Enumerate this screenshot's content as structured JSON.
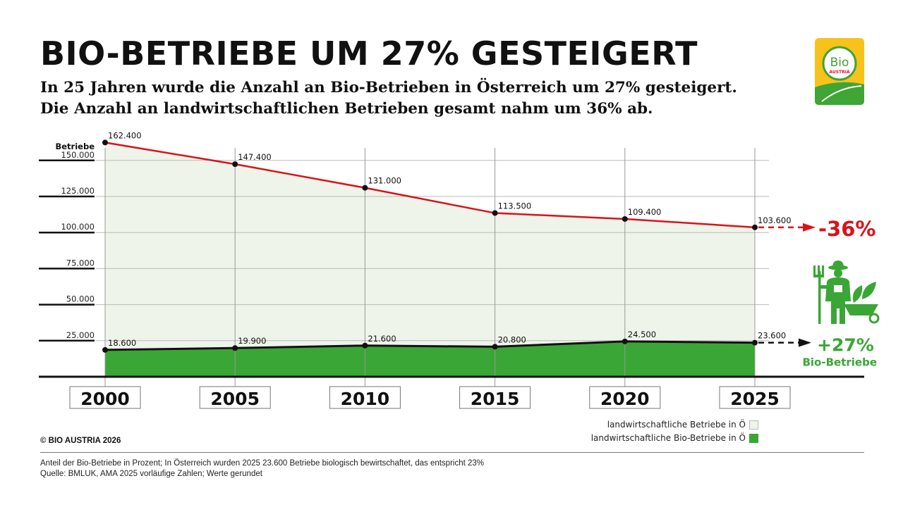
{
  "header": {
    "title": "BIO-BETRIEBE UM 27% GESTEIGERT",
    "subtitle_line1": "In 25 Jahren wurde die Anzahl an Bio-Betrieben in Österreich um 27% gesteigert.",
    "subtitle_line2": "Die Anzahl an landwirtschaftlichen Betrieben gesamt nahm um 36% ab."
  },
  "logo": {
    "text_main": "Bio",
    "text_sub": "AUSTRIA",
    "colors": {
      "background": "#F7C21A",
      "green": "#3FA535",
      "red": "#E2141F"
    }
  },
  "chart_data": {
    "type": "area",
    "title": "BIO-BETRIEBE UM 27% GESTEIGERT",
    "ylabel": "Betriebe",
    "xlabel": "",
    "x": [
      "2000",
      "2005",
      "2010",
      "2015",
      "2020",
      "2025"
    ],
    "ylim": [
      0,
      162400
    ],
    "yticks": [
      25000,
      50000,
      75000,
      100000,
      125000,
      150000
    ],
    "ytick_labels": [
      "25.000",
      "50.000",
      "75.000",
      "100.000",
      "125.000",
      "150.000"
    ],
    "grid": true,
    "series": [
      {
        "name": "landwirtschaftliche Betriebe in Ö",
        "values": [
          162400,
          147400,
          131000,
          113500,
          109400,
          103600
        ],
        "labels": [
          "162.400",
          "147.400",
          "131.000",
          "113.500",
          "109.400",
          "103.600"
        ],
        "line_color": "#D7141A",
        "fill_color": "#EFF4EA",
        "change_label": "-36%"
      },
      {
        "name": "landwirtschaftliche Bio-Betriebe in Ö",
        "values": [
          18600,
          19900,
          21600,
          20800,
          24500,
          23600
        ],
        "labels": [
          "18.600",
          "19.900",
          "21.600",
          "20.800",
          "24.500",
          "23.600"
        ],
        "line_color": "#111111",
        "fill_color": "#3AA635",
        "change_label": "+27%",
        "change_sublabel": "Bio-Betriebe"
      }
    ],
    "legend": "bottom-right",
    "annotation_icon": "farmer-with-wheelbarrow-icon"
  },
  "legend": {
    "items": [
      {
        "label": "landwirtschaftliche Betriebe in Ö",
        "color": "#EFF4EA"
      },
      {
        "label": "landwirtschaftliche Bio-Betriebe in Ö",
        "color": "#3AA635"
      }
    ]
  },
  "copyright": "© BIO AUSTRIA 2026",
  "footer": {
    "line1": "Anteil der Bio-Betriebe in Prozent; In Österreich wurden 2025 23.600 Betriebe biologisch bewirtschaftet, das entspricht 23%",
    "line2": "Quelle: BMLUK, AMA 2025 vorläufige Zahlen; Werte gerundet"
  }
}
